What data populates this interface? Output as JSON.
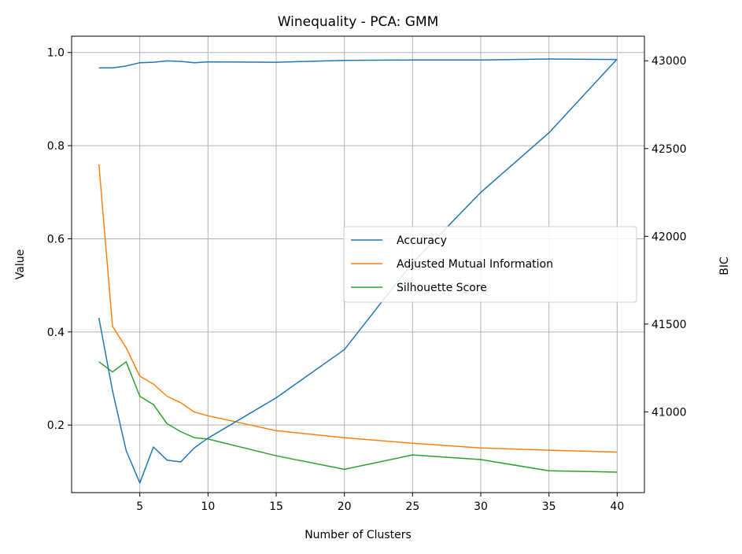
{
  "chart_data": {
    "type": "line",
    "title": "Winequality - PCA: GMM",
    "xlabel": "Number of Clusters",
    "ylabel": "Value",
    "y2label": "BIC",
    "xlim": [
      0,
      42
    ],
    "ylim": [
      0.055,
      1.035
    ],
    "y2lim": [
      40540,
      43140
    ],
    "x_ticks": [
      5,
      10,
      15,
      20,
      25,
      30,
      35,
      40
    ],
    "y_ticks": [
      0.2,
      0.4,
      0.6,
      0.8,
      1.0
    ],
    "y_tick_labels": [
      "0.2",
      "0.4",
      "0.6",
      "0.8",
      "1.0"
    ],
    "y2_ticks": [
      41000,
      41500,
      42000,
      42500,
      43000
    ],
    "grid": true,
    "legend_position": "center-right",
    "x": [
      2,
      3,
      4,
      5,
      6,
      7,
      8,
      9,
      10,
      15,
      20,
      25,
      30,
      35,
      40
    ],
    "series": [
      {
        "name": "Accuracy",
        "axis": "left",
        "color": "#1f77b4",
        "values": [
          0.967,
          0.967,
          0.971,
          0.978,
          0.979,
          0.982,
          0.981,
          0.978,
          0.98,
          0.979,
          0.983,
          0.984,
          0.984,
          0.986,
          0.985
        ]
      },
      {
        "name": "Adjusted Mutual Information",
        "axis": "left",
        "color": "#ff7f0e",
        "values": [
          0.76,
          0.412,
          0.366,
          0.305,
          0.288,
          0.262,
          0.248,
          0.228,
          0.22,
          0.188,
          0.173,
          0.161,
          0.151,
          0.146,
          0.142
        ]
      },
      {
        "name": "Silhouette Score",
        "axis": "left",
        "color": "#2ca02c",
        "values": [
          0.336,
          0.314,
          0.336,
          0.262,
          0.244,
          0.203,
          0.186,
          0.173,
          0.17,
          0.134,
          0.105,
          0.136,
          0.126,
          0.102,
          0.099
        ]
      },
      {
        "axis": "right",
        "color": "#1f77b4",
        "values": [
          41535,
          41120,
          40780,
          40595,
          40800,
          40725,
          40715,
          40795,
          40850,
          41080,
          41355,
          41850,
          42250,
          42590,
          43010
        ]
      }
    ]
  }
}
